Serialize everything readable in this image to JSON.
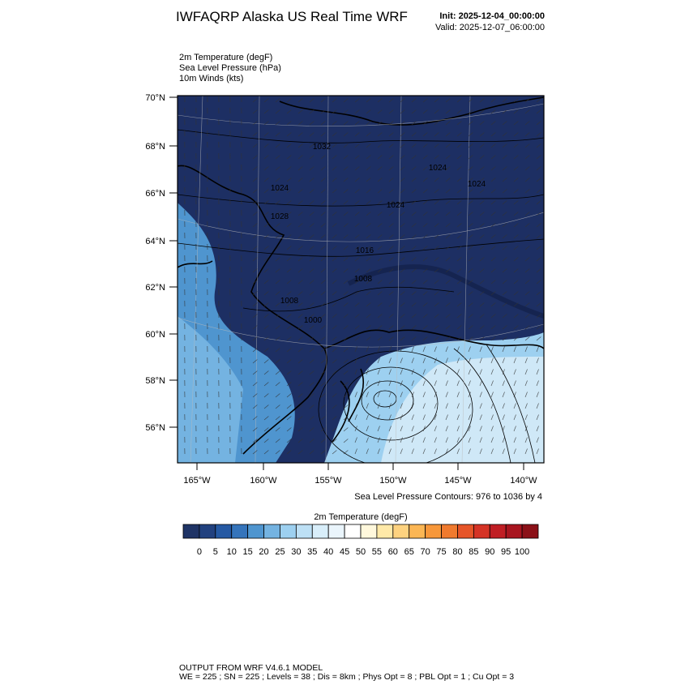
{
  "header": {
    "title": "IWFAQRP Alaska US Real Time WRF",
    "init": "Init: 2025-12-04_00:00:00",
    "valid": "Valid: 2025-12-07_06:00:00"
  },
  "fields": [
    "2m Temperature   (degF)",
    "Sea Level Pressure   (hPa)",
    "10m Winds   (kts)"
  ],
  "map": {
    "lat_labels": [
      "70°N",
      "68°N",
      "66°N",
      "64°N",
      "62°N",
      "60°N",
      "58°N",
      "56°N"
    ],
    "lon_labels": [
      "165°W",
      "160°W",
      "155°W",
      "150°W",
      "145°W",
      "140°W"
    ],
    "contour_labels": [
      "1032",
      "1024",
      "1028",
      "1024",
      "1016",
      "1008",
      "1008",
      "1000",
      "1024",
      "1024"
    ],
    "contour_note": "Sea Level Pressure Contours: 976 to 1036 by 4"
  },
  "colorbar": {
    "title": "2m Temperature  (degF)",
    "ticks": [
      0,
      5,
      10,
      15,
      20,
      25,
      30,
      35,
      40,
      45,
      50,
      55,
      60,
      65,
      70,
      75,
      80,
      85,
      90,
      95,
      100
    ],
    "colors": [
      "#1f3466",
      "#21417f",
      "#2559a3",
      "#3574bb",
      "#4f95cf",
      "#74b3e1",
      "#9dd0f0",
      "#bde0f5",
      "#d8eefa",
      "#eaf5fc",
      "#ffffff",
      "#fff8dc",
      "#ffe9a8",
      "#fdd27f",
      "#fbb654",
      "#f7973a",
      "#f07a2e",
      "#e65528",
      "#d53325",
      "#c01e24",
      "#a8151f",
      "#8b1118"
    ]
  },
  "footer": [
    "OUTPUT FROM WRF V4.6.1 MODEL",
    "WE = 225 ; SN = 225 ; Levels = 38 ; Dis = 8km ; Phys Opt = 8 ; PBL Opt = 1 ; Cu Opt = 3"
  ]
}
